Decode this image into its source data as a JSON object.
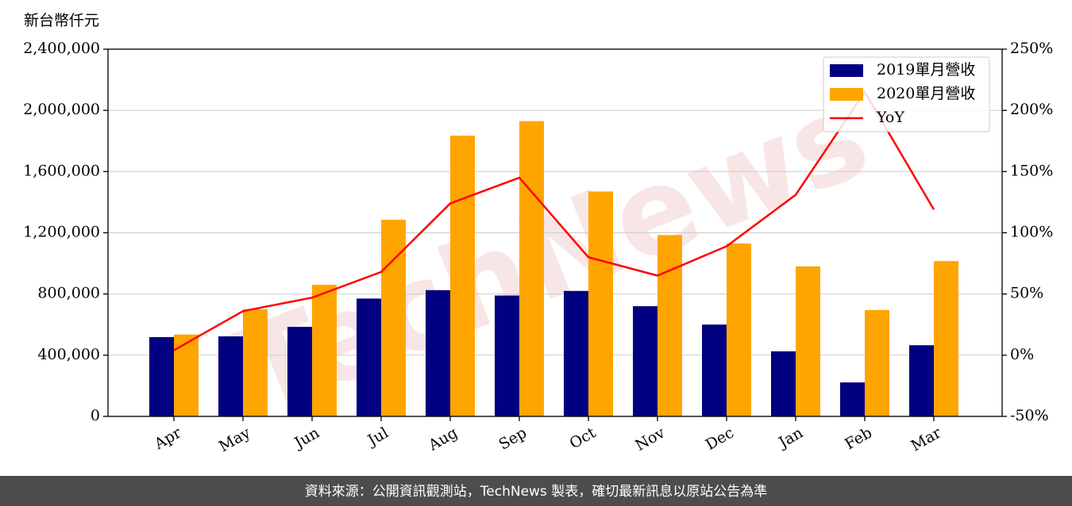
{
  "chart_data": {
    "type": "bar",
    "ylabel": "新台幣仟元",
    "watermark": "TechNews",
    "footer": "資料來源：公開資訊觀測站，TechNews 製表，確切最新訊息以原站公告為準",
    "categories": [
      "Apr",
      "May",
      "Jun",
      "Jul",
      "Aug",
      "Sep",
      "Oct",
      "Nov",
      "Dec",
      "Jan",
      "Feb",
      "Mar"
    ],
    "series": [
      {
        "name": "2019單月營收",
        "color": "#000080",
        "type": "bar",
        "values": [
          518000,
          523000,
          585000,
          770000,
          825000,
          790000,
          820000,
          720000,
          600000,
          425000,
          222000,
          465000
        ]
      },
      {
        "name": "2020單月營收",
        "color": "#ffa500",
        "type": "bar",
        "values": [
          535000,
          700000,
          860000,
          1285000,
          1835000,
          1930000,
          1470000,
          1185000,
          1130000,
          980000,
          695000,
          1015000
        ]
      },
      {
        "name": "YoY",
        "color": "#ff0000",
        "type": "line",
        "axis": "y2",
        "values": [
          4,
          36,
          47,
          68,
          124,
          145,
          80,
          65,
          89,
          131,
          215,
          119
        ]
      }
    ],
    "ylim": [
      0,
      2400000
    ],
    "yticks": [
      0,
      {
        "value": 400000,
        "label": "400,000"
      },
      {
        "value": 800000,
        "label": "800,000"
      },
      {
        "value": 1200000,
        "label": "1,200,000"
      },
      {
        "value": 1600000,
        "label": "1,600,000"
      },
      {
        "value": 2000000,
        "label": "2,000,000"
      },
      {
        "value": 2400000,
        "label": "2,400,000"
      }
    ],
    "y2lim": [
      -50,
      250
    ],
    "y2ticks": [
      {
        "value": -50,
        "label": "-50%"
      },
      {
        "value": 0,
        "label": "0%"
      },
      {
        "value": 50,
        "label": "50%"
      },
      {
        "value": 100,
        "label": "100%"
      },
      {
        "value": 150,
        "label": "150%"
      },
      {
        "value": 200,
        "label": "200%"
      },
      {
        "value": 250,
        "label": "250%"
      }
    ],
    "grid": true,
    "legend": "upper right"
  }
}
